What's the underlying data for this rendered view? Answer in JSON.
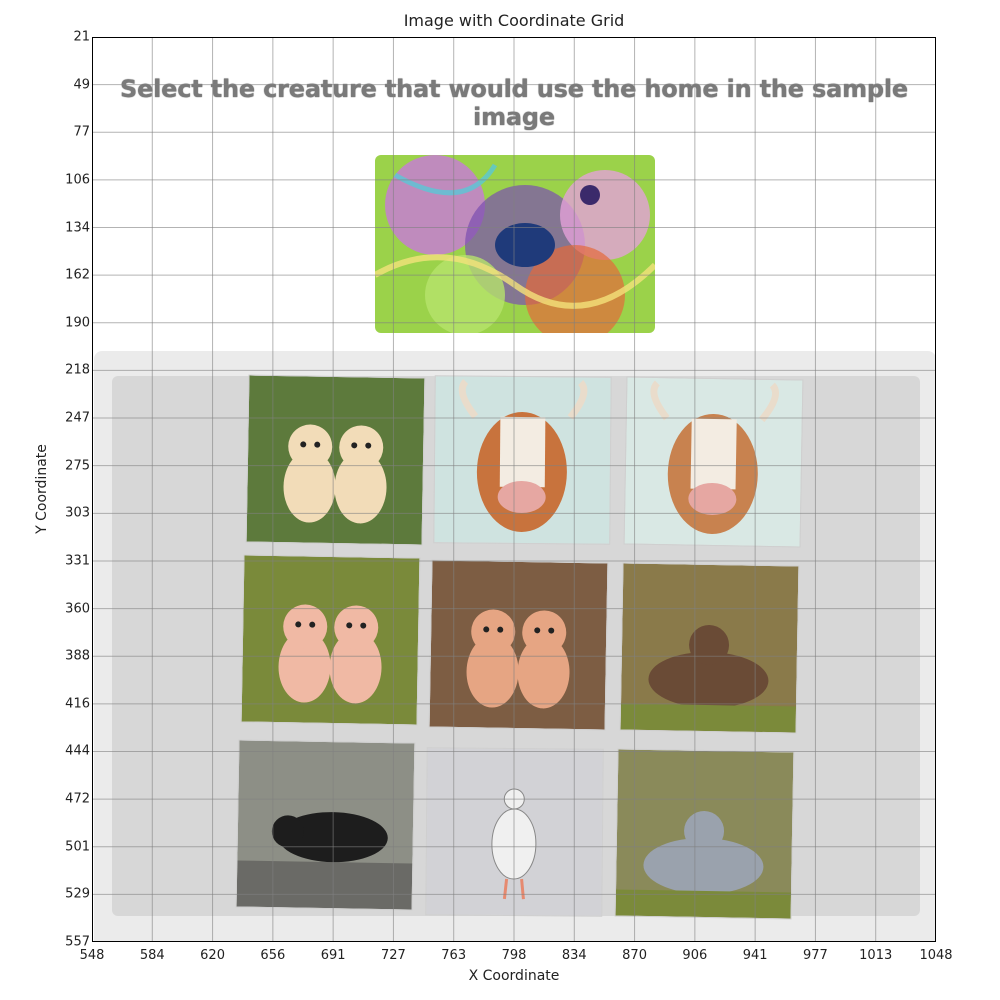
{
  "figure": {
    "title": "Image with Coordinate Grid",
    "xlabel": "X Coordinate",
    "ylabel": "Y Coordinate",
    "x_ticks": [
      "548",
      "584",
      "620",
      "656",
      "691",
      "727",
      "763",
      "798",
      "834",
      "870",
      "906",
      "941",
      "977",
      "1013",
      "1048"
    ],
    "y_ticks": [
      "21",
      "49",
      "77",
      "106",
      "134",
      "162",
      "190",
      "218",
      "247",
      "275",
      "303",
      "331",
      "360",
      "388",
      "416",
      "444",
      "472",
      "501",
      "529",
      "557"
    ]
  },
  "captcha": {
    "prompt": "Select the creature that would use the home in the sample image",
    "sample": {
      "description_icon": "abstract-nest-icon"
    },
    "tiles": [
      {
        "subject": "puppies",
        "scene": "park",
        "bg": "#5d7a3c",
        "body": "#f2dcb8"
      },
      {
        "subject": "cow",
        "scene": "forest-sketch",
        "bg": "#cfe3e0",
        "body": "#c8733d"
      },
      {
        "subject": "cow",
        "scene": "forest-sketch",
        "bg": "#d9e8e4",
        "body": "#c8824f"
      },
      {
        "subject": "puppies",
        "scene": "autumn-park",
        "bg": "#7a8a3a",
        "body": "#f0b9a4"
      },
      {
        "subject": "puppies",
        "scene": "dirt-ground",
        "bg": "#7d5d43",
        "body": "#e6a583"
      },
      {
        "subject": "cow",
        "scene": "sunlit-field",
        "bg": "#8a7a4a",
        "body": "#6a4b36"
      },
      {
        "subject": "black-cow",
        "scene": "street",
        "bg": "#8d8f86",
        "body": "#1d1d1d"
      },
      {
        "subject": "duck",
        "scene": "poster",
        "bg": "#d2d2d6",
        "body": "#f0f0f0"
      },
      {
        "subject": "cow",
        "scene": "grass-tree",
        "bg": "#8a8a5a",
        "body": "#9aa2ad"
      }
    ]
  }
}
